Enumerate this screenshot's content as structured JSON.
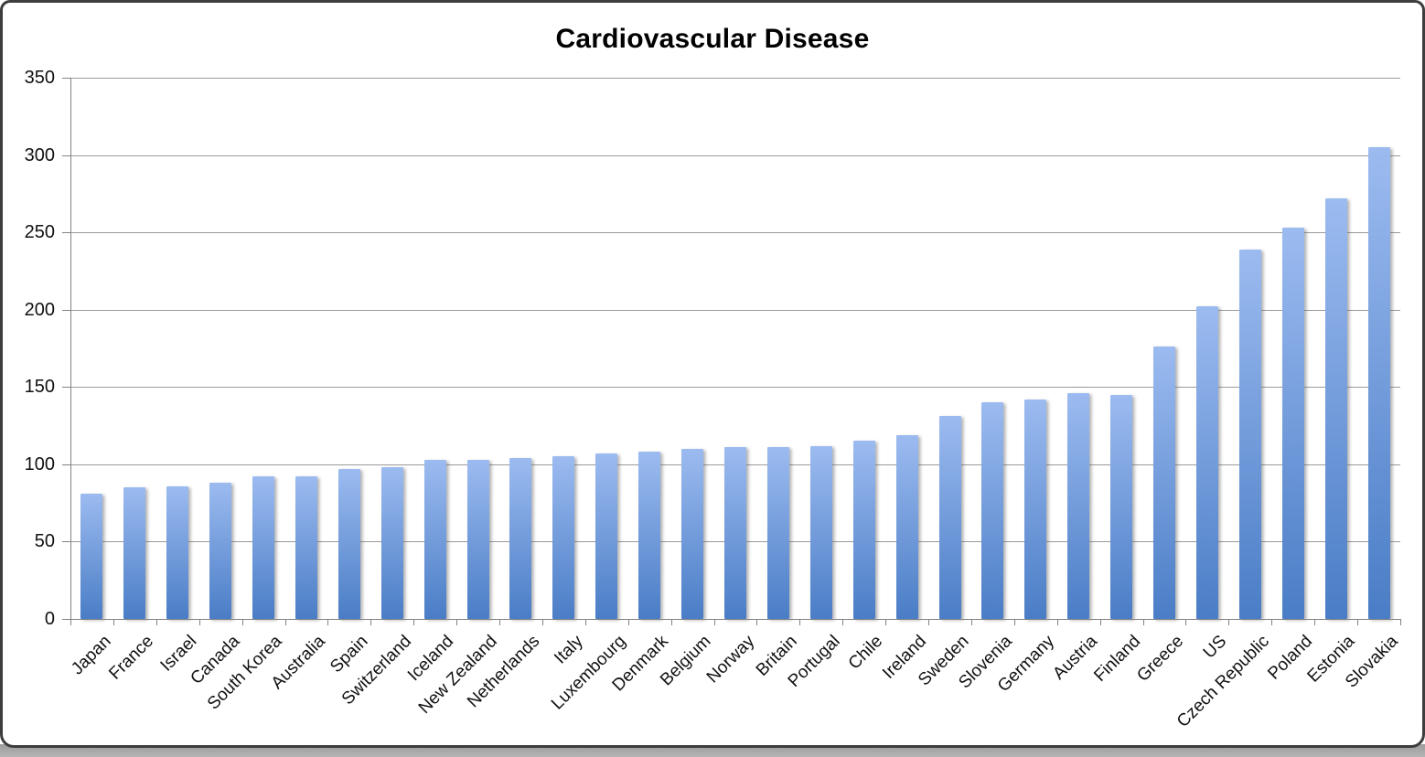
{
  "chart_data": {
    "type": "bar",
    "title": "Cardiovascular Disease",
    "categories": [
      "Japan",
      "France",
      "Israel",
      "Canada",
      "South Korea",
      "Australia",
      "Spain",
      "Switzerland",
      "Iceland",
      "New Zealand",
      "Netherlands",
      "Italy",
      "Luxembourg",
      "Denmark",
      "Belgium",
      "Norway",
      "Britain",
      "Portugal",
      "Chile",
      "Ireland",
      "Sweden",
      "Slovenia",
      "Germany",
      "Austria",
      "Finland",
      "Greece",
      "US",
      "Czech Republic",
      "Poland",
      "Estonia",
      "Slovakia"
    ],
    "values": [
      81,
      85,
      86,
      88,
      92,
      92,
      97,
      98,
      103,
      103,
      104,
      105,
      107,
      108,
      110,
      111,
      111,
      112,
      115,
      119,
      131,
      140,
      142,
      146,
      145,
      176,
      202,
      239,
      253,
      272,
      305
    ],
    "xlabel": "",
    "ylabel": "",
    "ylim": [
      0,
      350
    ],
    "ytick_step": 50,
    "yticks": [
      "0",
      "50",
      "100",
      "150",
      "200",
      "250",
      "300",
      "350"
    ],
    "grid": true,
    "legend": "none",
    "bar_gradient_top": "#9cbbf0",
    "bar_gradient_bottom": "#4a7dc6"
  }
}
